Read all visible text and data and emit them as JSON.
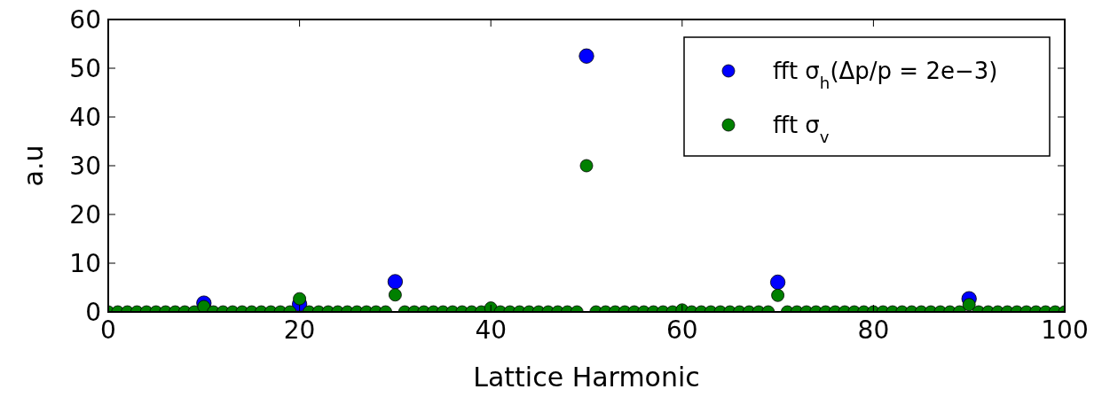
{
  "chart_data": {
    "type": "scatter",
    "xlabel": "Lattice Harmonic",
    "ylabel": "a.u",
    "x": [
      0,
      1,
      2,
      3,
      4,
      5,
      6,
      7,
      8,
      9,
      10,
      11,
      12,
      13,
      14,
      15,
      16,
      17,
      18,
      19,
      20,
      21,
      22,
      23,
      24,
      25,
      26,
      27,
      28,
      29,
      30,
      31,
      32,
      33,
      34,
      35,
      36,
      37,
      38,
      39,
      40,
      41,
      42,
      43,
      44,
      45,
      46,
      47,
      48,
      49,
      50,
      51,
      52,
      53,
      54,
      55,
      56,
      57,
      58,
      59,
      60,
      61,
      62,
      63,
      64,
      65,
      66,
      67,
      68,
      69,
      70,
      71,
      72,
      73,
      74,
      75,
      76,
      77,
      78,
      79,
      80,
      81,
      82,
      83,
      84,
      85,
      86,
      87,
      88,
      89,
      90,
      91,
      92,
      93,
      94,
      95,
      96,
      97,
      98,
      99,
      100
    ],
    "series": [
      {
        "name": "fft σ$_{h}$(Δp/p = 2e−3)",
        "color": "#0000ff",
        "values": [
          null,
          null,
          null,
          null,
          null,
          null,
          null,
          null,
          null,
          null,
          1.8,
          null,
          null,
          null,
          null,
          null,
          null,
          null,
          null,
          null,
          1.6,
          null,
          null,
          null,
          null,
          null,
          null,
          null,
          null,
          null,
          6.2,
          null,
          null,
          null,
          null,
          null,
          null,
          null,
          null,
          null,
          null,
          null,
          null,
          null,
          null,
          null,
          null,
          null,
          null,
          null,
          52.5,
          null,
          null,
          null,
          null,
          null,
          null,
          null,
          null,
          null,
          null,
          null,
          null,
          null,
          null,
          null,
          null,
          null,
          null,
          null,
          6.1,
          null,
          null,
          null,
          null,
          null,
          null,
          null,
          null,
          null,
          null,
          null,
          null,
          null,
          null,
          null,
          null,
          null,
          null,
          null,
          2.7,
          null,
          null,
          null,
          null,
          null,
          null,
          null,
          null,
          null,
          null
        ]
      },
      {
        "name": "fft σ$_{v}$",
        "color": "#008000",
        "values": [
          0,
          0,
          0,
          0,
          0,
          0,
          0,
          0,
          0,
          0,
          1.1,
          0,
          0,
          0,
          0,
          0,
          0,
          0,
          0,
          0,
          2.7,
          0,
          0,
          0,
          0,
          0,
          0,
          0,
          0,
          0,
          3.5,
          0,
          0,
          0,
          0,
          0,
          0,
          0,
          0,
          0,
          0.8,
          0,
          0,
          0,
          0,
          0,
          0,
          0,
          0,
          0,
          30,
          0,
          0,
          0,
          0,
          0,
          0,
          0,
          0,
          0,
          0.4,
          0,
          0,
          0,
          0,
          0,
          0,
          0,
          0,
          0,
          3.4,
          0,
          0,
          0,
          0,
          0,
          0,
          0,
          0,
          0,
          0,
          0,
          0,
          0,
          0,
          0,
          0,
          0,
          0,
          0,
          1.5,
          0,
          0,
          0,
          0,
          0,
          0,
          0,
          0,
          0,
          0
        ]
      }
    ],
    "xlim": [
      0,
      100
    ],
    "xticks": [
      0,
      20,
      40,
      60,
      80,
      100
    ],
    "ylim": [
      0,
      60
    ],
    "yticks": [
      0,
      10,
      20,
      30,
      40,
      50,
      60
    ],
    "grid": false,
    "legend": "top right",
    "marker": "circle"
  }
}
